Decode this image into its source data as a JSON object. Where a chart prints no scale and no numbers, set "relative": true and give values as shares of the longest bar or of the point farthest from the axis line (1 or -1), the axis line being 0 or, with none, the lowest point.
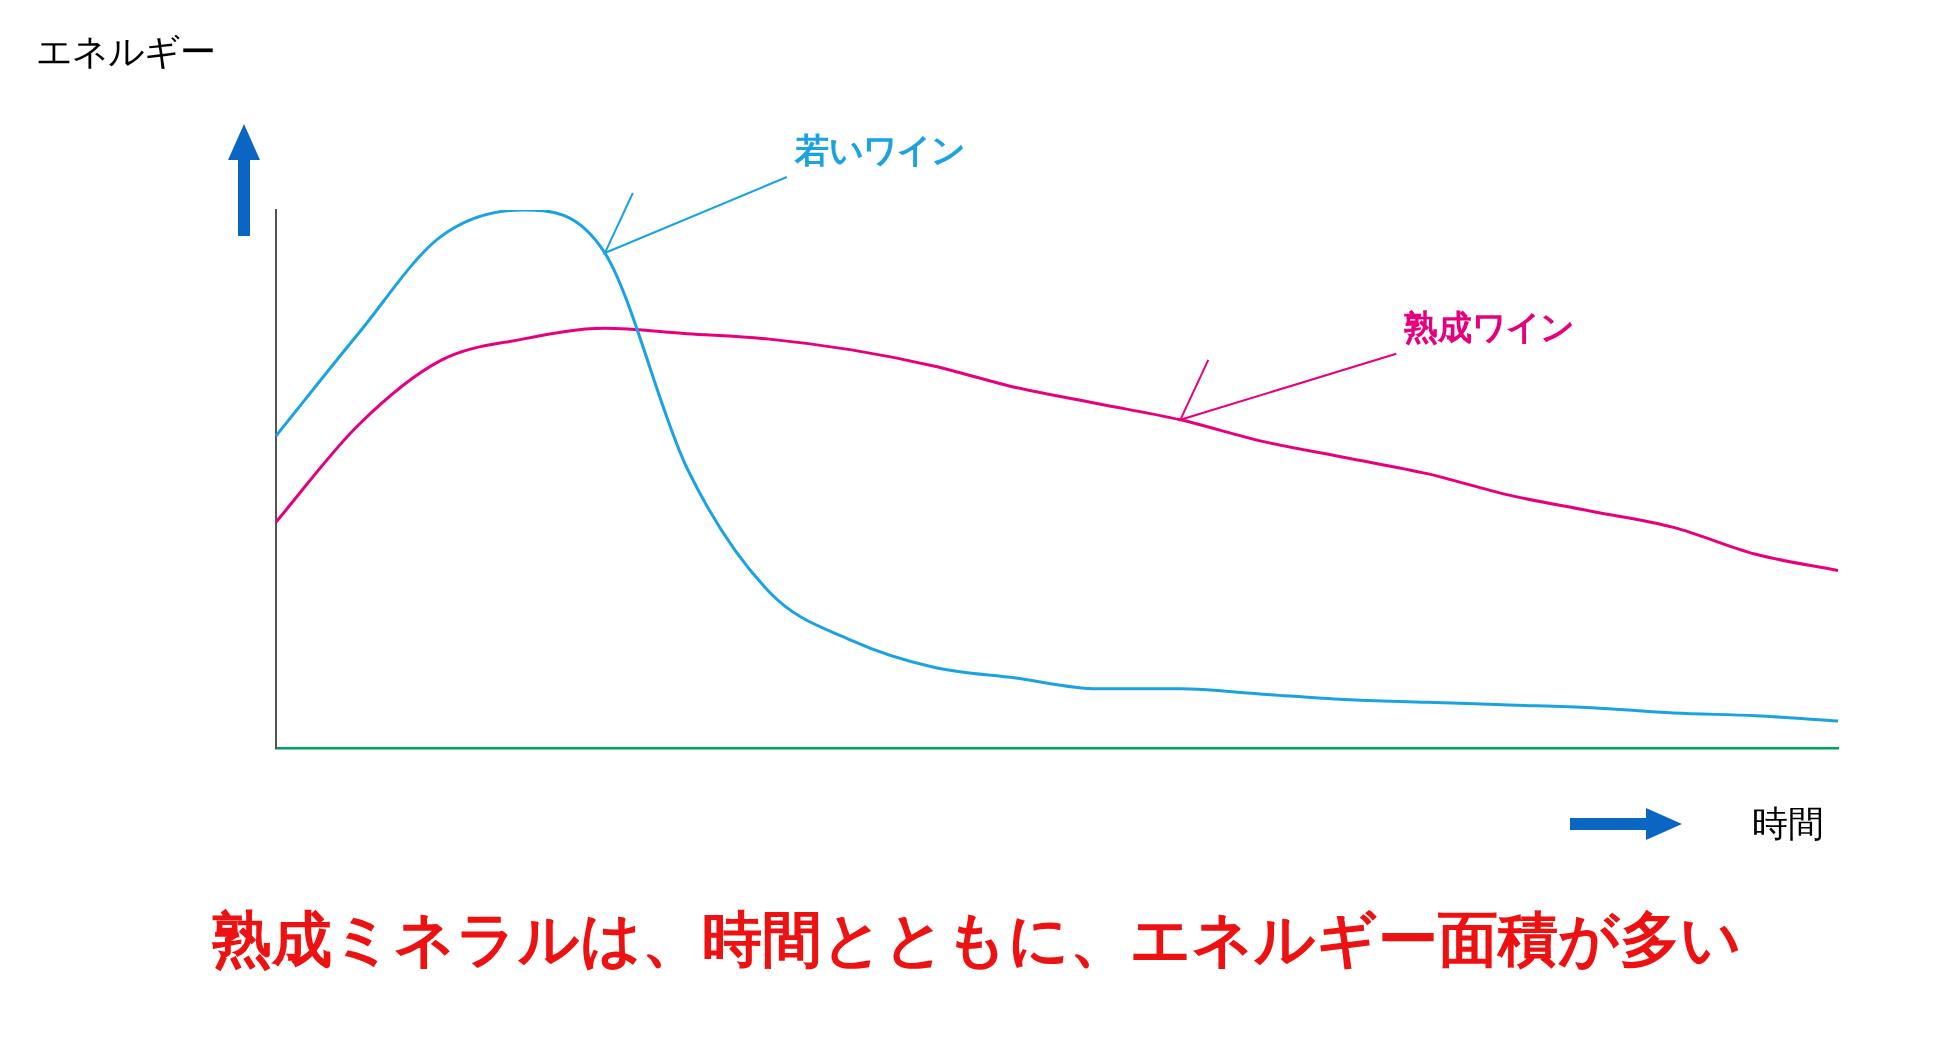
{
  "chart_data": {
    "type": "line",
    "title": "熟成ミネラルは、時間とともに、エネルギー面積が多い",
    "xlabel": "時間",
    "ylabel": "エネルギー",
    "relative": true,
    "legend": false,
    "grid": false,
    "marker": "none",
    "categories": [
      null,
      null,
      null,
      null,
      null,
      null,
      null,
      null,
      null,
      null,
      null,
      null,
      null,
      null,
      null,
      null,
      null,
      null,
      null,
      null
    ],
    "series": [
      {
        "name": "若いワイン",
        "color": "#1aa3e0",
        "values": [
          0.58,
          0.77,
          0.95,
          1.0,
          0.92,
          0.52,
          0.29,
          0.2,
          0.15,
          0.13,
          0.11,
          0.11,
          0.1,
          0.09,
          0.085,
          0.08,
          0.075,
          0.065,
          0.06,
          0.05
        ]
      },
      {
        "name": "熟成ワイン",
        "color": "#e6007e",
        "values": [
          0.42,
          0.6,
          0.72,
          0.76,
          0.78,
          0.77,
          0.76,
          0.74,
          0.71,
          0.67,
          0.64,
          0.61,
          0.57,
          0.54,
          0.51,
          0.47,
          0.44,
          0.41,
          0.36,
          0.33
        ]
      }
    ]
  }
}
